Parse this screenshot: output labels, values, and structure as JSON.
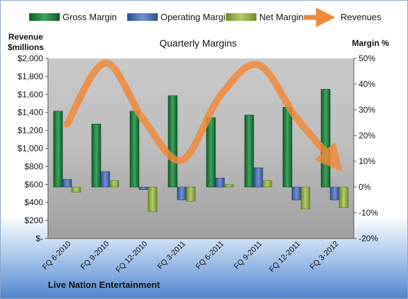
{
  "chart_data": {
    "type": "bar",
    "title": "Quarterly Margins",
    "company": "Live Nation Entertainment",
    "y_left_label": [
      "Revenue",
      "$millions"
    ],
    "y_right_label": "Margin %",
    "y_left_ticks": [
      "$-",
      "$200",
      "$400",
      "$600",
      "$800",
      "$1,000",
      "$1,200",
      "$1,400",
      "$1,600",
      "$1,800",
      "$2,000"
    ],
    "y_right_ticks": [
      "-20%",
      "-10%",
      "0%",
      "10%",
      "20%",
      "30%",
      "40%",
      "50%"
    ],
    "ylim_left": [
      0,
      2000
    ],
    "ylim_right": [
      -0.2,
      0.5
    ],
    "categories": [
      "FQ 6-2010",
      "FQ 9-2010",
      "FQ 12-2010",
      "FQ 3-2011",
      "FQ 6-2011",
      "FQ 9-2011",
      "FQ 12-2011",
      "FQ 3-2012"
    ],
    "series": [
      {
        "name": "Gross Margin",
        "axis": "right",
        "kind": "bar",
        "color": "#1e7a3c",
        "values": [
          0.295,
          0.245,
          0.295,
          0.355,
          0.27,
          0.28,
          0.31,
          0.38
        ]
      },
      {
        "name": "Operating Margin",
        "axis": "right",
        "kind": "bar",
        "color": "#4a6fb0",
        "values": [
          0.03,
          0.06,
          -0.01,
          -0.05,
          0.035,
          0.075,
          -0.05,
          -0.05
        ]
      },
      {
        "name": "Net Margin",
        "axis": "right",
        "kind": "bar",
        "color": "#8fae3e",
        "values": [
          -0.02,
          0.025,
          -0.095,
          -0.055,
          0.01,
          0.025,
          -0.085,
          -0.08
        ]
      },
      {
        "name": "Revenues",
        "axis": "left",
        "kind": "line",
        "color": "#f08a3a",
        "values": [
          1270,
          1950,
          1320,
          870,
          1580,
          1930,
          1340,
          845
        ]
      }
    ],
    "legend": {
      "position": "top",
      "items": [
        "Gross Margin",
        "Operating Margin",
        "Net Margin",
        "Revenues"
      ]
    },
    "grid": false
  }
}
